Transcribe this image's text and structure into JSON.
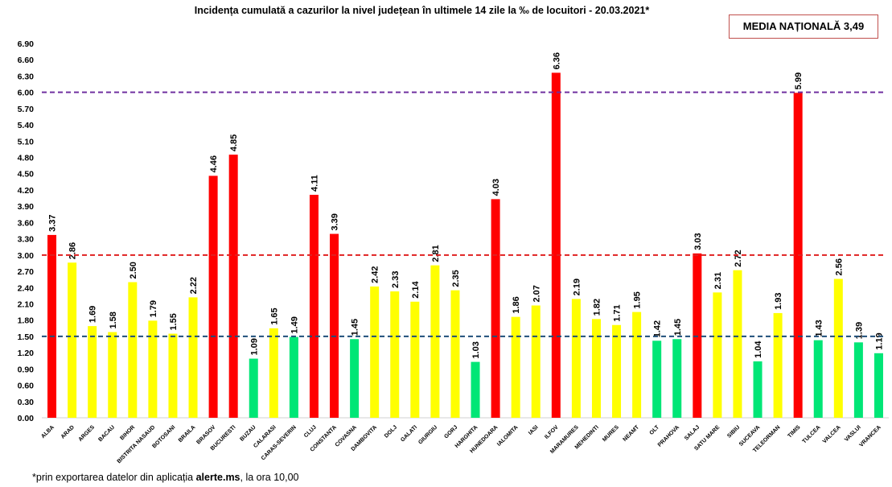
{
  "chart_data": {
    "type": "bar",
    "title": "Incidența cumulată a cazurilor la nivel județean în ultimele 14 zile la ‰ de locuitori - 20.03.2021*",
    "annotation": "MEDIA NAȚIONALĂ 3,49",
    "footnote_prefix": "*prin exportarea datelor din aplicația ",
    "footnote_bold": "alerte.ms",
    "footnote_suffix": ", la ora 10,00",
    "xlabel": "",
    "ylabel": "",
    "ylim": [
      0,
      6.9
    ],
    "yticks": [
      "0.00",
      "0.30",
      "0.60",
      "0.90",
      "1.20",
      "1.50",
      "1.80",
      "2.10",
      "2.40",
      "2.70",
      "3.00",
      "3.30",
      "3.60",
      "3.90",
      "4.20",
      "4.50",
      "4.80",
      "5.10",
      "5.40",
      "5.70",
      "6.00",
      "6.30",
      "6.60",
      "6.90"
    ],
    "grid": false,
    "thresholds": [
      {
        "value": 6.0,
        "color": "#7030a0"
      },
      {
        "value": 3.0,
        "color": "#e02020"
      },
      {
        "value": 1.5,
        "color": "#1f4e79"
      }
    ],
    "colors": {
      "red": "#ff0000",
      "yellow": "#ffff00",
      "green": "#00e676"
    },
    "categories": [
      "ALBA",
      "ARAD",
      "ARGES",
      "BACAU",
      "BIHOR",
      "BISTRITA NASAUD",
      "BOTOSANI",
      "BRAILA",
      "BRASOV",
      "BUCURESTI",
      "BUZAU",
      "CALARASI",
      "CARAS-SEVERIN",
      "CLUJ",
      "CONSTANTA",
      "COVASNA",
      "DAMBOVITA",
      "DOLJ",
      "GALATI",
      "GIURGIU",
      "GORJ",
      "HARGHITA",
      "HUNEDOARA",
      "IALOMITA",
      "IASI",
      "ILFOV",
      "MARAMURES",
      "MEHEDINTI",
      "MURES",
      "NEAMT",
      "OLT",
      "PRAHOVA",
      "SALAJ",
      "SATU MARE",
      "SIBIU",
      "SUCEAVA",
      "TELEORMAN",
      "TIMIS",
      "TULCEA",
      "VALCEA",
      "VASLUI",
      "VRANCEA"
    ],
    "values": [
      3.37,
      2.86,
      1.69,
      1.58,
      2.5,
      1.79,
      1.55,
      2.22,
      4.46,
      4.85,
      1.09,
      1.65,
      1.49,
      4.11,
      3.39,
      1.45,
      2.42,
      2.33,
      2.14,
      2.81,
      2.35,
      1.03,
      4.03,
      1.86,
      2.07,
      6.36,
      2.19,
      1.82,
      1.71,
      1.95,
      1.42,
      1.45,
      3.03,
      2.31,
      2.72,
      1.04,
      1.93,
      5.99,
      1.43,
      2.56,
      1.39,
      1.19
    ],
    "labels": [
      "3.37",
      "2.86",
      "1.69",
      "1.58",
      "2.50",
      "1.79",
      "1.55",
      "2.22",
      "4.46",
      "4.85",
      "1.09",
      "1.65",
      "1.49",
      "4.11",
      "3.39",
      "1.45",
      "2.42",
      "2.33",
      "2.14",
      "2.81",
      "2.35",
      "1.03",
      "4.03",
      "1.86",
      "2.07",
      "6.36",
      "2.19",
      "1.82",
      "1.71",
      "1.95",
      "1.42",
      "1.45",
      "3.03",
      "2.31",
      "2.72",
      "1.04",
      "1.93",
      "5.99",
      "1.43",
      "2.56",
      "1.39",
      "1.19"
    ]
  }
}
